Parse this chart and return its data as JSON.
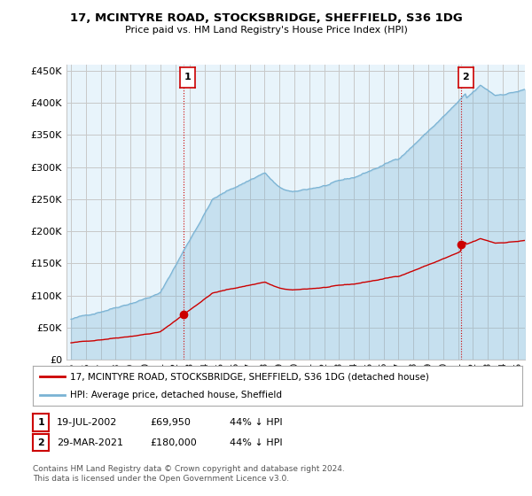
{
  "title": "17, MCINTYRE ROAD, STOCKSBRIDGE, SHEFFIELD, S36 1DG",
  "subtitle": "Price paid vs. HM Land Registry's House Price Index (HPI)",
  "ylim": [
    0,
    460000
  ],
  "yticks": [
    0,
    50000,
    100000,
    150000,
    200000,
    250000,
    300000,
    350000,
    400000,
    450000
  ],
  "xlim_start": 1995.0,
  "xlim_end": 2025.5,
  "hpi_color": "#7ab3d4",
  "hpi_fill_color": "#ddeef7",
  "price_color": "#cc0000",
  "vline_color": "#cc0000",
  "t1": 2002.54,
  "p1": 69950,
  "t2": 2021.23,
  "p2": 180000,
  "legend_line1": "17, MCINTYRE ROAD, STOCKSBRIDGE, SHEFFIELD, S36 1DG (detached house)",
  "legend_line2": "HPI: Average price, detached house, Sheffield",
  "background_color": "#ffffff",
  "plot_bg_color": "#e8f4fb",
  "grid_color": "#c8c8c8"
}
